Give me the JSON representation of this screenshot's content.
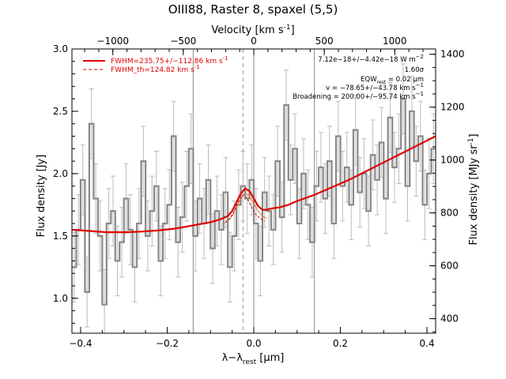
{
  "chart_data": {
    "type": "line",
    "title": "OIII88, Raster 8, spaxel (5,5)",
    "xlabel_main": "λ−λ",
    "xlabel_sub": "rest",
    "xlabel_unit": "[μm]",
    "ylabel_left": "Flux density [Jy]",
    "ylabel_right": "Flux density [MJy sr",
    "ylabel_right_exp": "-1",
    "xlabel_top": "Velocity [km s",
    "xlabel_top_exp": "-1",
    "xlim": [
      -0.42,
      0.42
    ],
    "ylim": [
      0.72,
      3.0
    ],
    "top_axis_range": [
      -1290,
      1290
    ],
    "right_axis_range": [
      345,
      1420
    ],
    "xticks": [
      -0.4,
      -0.2,
      0.0,
      0.2,
      0.4
    ],
    "xtick_labels": [
      "−0.4",
      "−0.2",
      "0.0",
      "0.2",
      "0.4"
    ],
    "yticks": [
      1.0,
      1.5,
      2.0,
      2.5,
      3.0
    ],
    "ytick_labels": [
      "1.0",
      "1.5",
      "2.0",
      "2.5",
      "3.0"
    ],
    "top_ticks": [
      -1000,
      -500,
      0,
      500,
      1000
    ],
    "top_tick_labels": [
      "−1000",
      "−500",
      "0",
      "500",
      "1000"
    ],
    "right_ticks": [
      400,
      600,
      800,
      1000,
      1200,
      1400
    ],
    "right_tick_labels": [
      "400",
      "600",
      "800",
      "1000",
      "1200",
      "1400"
    ],
    "vlines_x": [
      -0.14,
      0.0,
      0.14
    ],
    "dashed_vline_x": -0.025,
    "grid": false,
    "legend": {
      "placement": "top-left",
      "entries": [
        {
          "label": "FWHM=235.75+/−112.86 km s",
          "sup": "-1",
          "style": "solid",
          "color": "#e00000"
        },
        {
          "label": "FWHM_th=124.82 km s",
          "sup": "-1",
          "style": "dashed",
          "color": "#e00000"
        }
      ]
    },
    "annotations": [
      {
        "text": "7.12e−18+/−4.42e−18 W m",
        "sup": "−2"
      },
      {
        "text": "1.60σ",
        "sup": ""
      },
      {
        "text": "EQW",
        "sub": "rest",
        "tail": " = 0.02 μm"
      },
      {
        "text": "v = −78.65+/−43.78 km s",
        "sup": "−1"
      },
      {
        "text": "Broadening = 200.00+/−95.74 km s",
        "sup": "−1"
      }
    ],
    "colors": {
      "data": "#888888",
      "errorbar": "#bbbbbb",
      "fit": "#e00000",
      "component": "#d08040",
      "axes": "#000000"
    },
    "series": [
      {
        "name": "",
        "kind": "data-steps",
        "x": [
          -0.415,
          -0.405,
          -0.395,
          -0.385,
          -0.375,
          -0.365,
          -0.355,
          -0.345,
          -0.335,
          -0.325,
          -0.315,
          -0.305,
          -0.295,
          -0.285,
          -0.275,
          -0.265,
          -0.255,
          -0.245,
          -0.235,
          -0.225,
          -0.215,
          -0.205,
          -0.195,
          -0.185,
          -0.175,
          -0.165,
          -0.155,
          -0.145,
          -0.135,
          -0.125,
          -0.115,
          -0.105,
          -0.095,
          -0.085,
          -0.075,
          -0.065,
          -0.055,
          -0.045,
          -0.035,
          -0.025,
          -0.015,
          -0.005,
          0.005,
          0.015,
          0.025,
          0.035,
          0.045,
          0.055,
          0.065,
          0.075,
          0.085,
          0.095,
          0.105,
          0.115,
          0.125,
          0.135,
          0.145,
          0.155,
          0.165,
          0.175,
          0.185,
          0.195,
          0.205,
          0.215,
          0.225,
          0.235,
          0.245,
          0.255,
          0.265,
          0.275,
          0.285,
          0.295,
          0.305,
          0.315,
          0.325,
          0.335,
          0.345,
          0.355,
          0.365,
          0.375,
          0.385,
          0.395,
          0.405,
          0.415
        ],
        "y": [
          1.25,
          1.55,
          1.95,
          1.05,
          2.4,
          1.8,
          1.5,
          0.95,
          1.6,
          1.7,
          1.3,
          1.45,
          1.8,
          1.55,
          1.25,
          1.6,
          2.1,
          1.5,
          1.7,
          1.9,
          1.3,
          1.6,
          1.75,
          2.3,
          1.45,
          1.65,
          1.9,
          2.2,
          1.5,
          1.8,
          1.6,
          1.95,
          1.4,
          1.7,
          1.55,
          1.85,
          1.25,
          1.5,
          1.75,
          1.9,
          1.8,
          1.95,
          1.6,
          1.3,
          1.85,
          1.7,
          1.55,
          2.1,
          1.65,
          2.55,
          1.95,
          2.2,
          1.6,
          2.0,
          1.75,
          1.45,
          1.9,
          2.05,
          1.8,
          2.1,
          1.6,
          2.3,
          1.9,
          2.05,
          1.75,
          2.35,
          1.85,
          2.0,
          1.7,
          2.15,
          1.95,
          2.25,
          1.8,
          2.45,
          2.05,
          2.2,
          2.6,
          1.9,
          2.5,
          2.1,
          2.3,
          1.75,
          2.0,
          2.2
        ],
        "yerr": 0.28
      },
      {
        "name": "",
        "kind": "fit-total",
        "x": [
          -0.42,
          -0.38,
          -0.34,
          -0.3,
          -0.26,
          -0.22,
          -0.18,
          -0.14,
          -0.1,
          -0.08,
          -0.06,
          -0.05,
          -0.04,
          -0.03,
          -0.02,
          -0.01,
          0.0,
          0.01,
          0.02,
          0.03,
          0.04,
          0.05,
          0.06,
          0.08,
          0.1,
          0.14,
          0.18,
          0.22,
          0.26,
          0.3,
          0.34,
          0.38,
          0.42
        ],
        "y": [
          1.55,
          1.54,
          1.53,
          1.53,
          1.535,
          1.545,
          1.56,
          1.585,
          1.61,
          1.63,
          1.66,
          1.7,
          1.77,
          1.84,
          1.88,
          1.86,
          1.8,
          1.74,
          1.71,
          1.71,
          1.72,
          1.725,
          1.73,
          1.75,
          1.78,
          1.83,
          1.89,
          1.95,
          2.02,
          2.09,
          2.16,
          2.23,
          2.3
        ]
      },
      {
        "name": "",
        "kind": "component",
        "x": [
          -0.07,
          -0.06,
          -0.05,
          -0.04,
          -0.03,
          -0.02,
          -0.01,
          0.0,
          0.01,
          0.02,
          0.03
        ],
        "y": [
          1.6,
          1.62,
          1.66,
          1.73,
          1.8,
          1.84,
          1.82,
          1.76,
          1.7,
          1.66,
          1.64
        ]
      },
      {
        "name": "",
        "kind": "component-thermal",
        "x": [
          -0.065,
          -0.055,
          -0.045,
          -0.035,
          -0.025,
          -0.015,
          -0.005,
          0.005,
          0.015,
          0.025
        ],
        "y": [
          1.61,
          1.64,
          1.7,
          1.78,
          1.83,
          1.8,
          1.73,
          1.67,
          1.64,
          1.62
        ]
      }
    ]
  }
}
